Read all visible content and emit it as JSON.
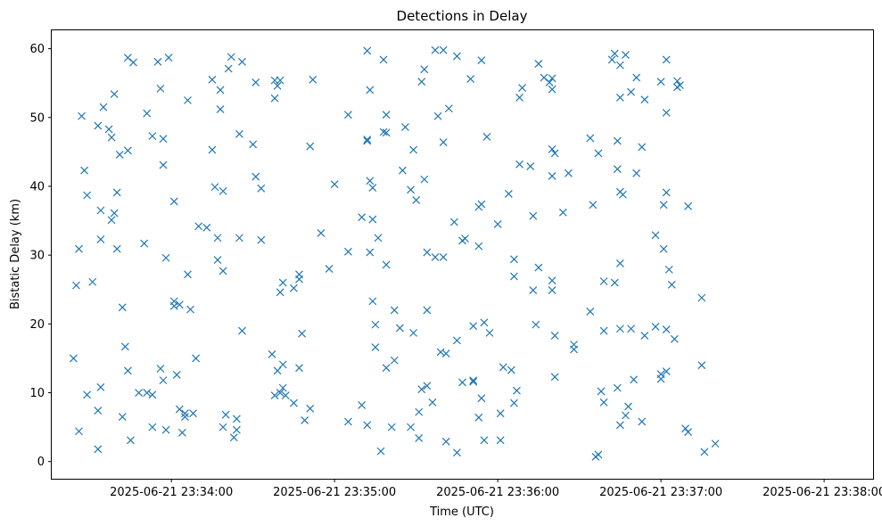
{
  "chart_data": {
    "type": "scatter",
    "title": "Detections in Delay",
    "xlabel": "Time (UTC)",
    "ylabel": "Bistatic Delay (km)",
    "x_ticks": [
      {
        "t": "2025-06-21 23:34:00",
        "label": "2025-06-21 23:34:00"
      },
      {
        "t": "2025-06-21 23:35:00",
        "label": "2025-06-21 23:35:00"
      },
      {
        "t": "2025-06-21 23:36:00",
        "label": "2025-06-21 23:36:00"
      },
      {
        "t": "2025-06-21 23:37:00",
        "label": "2025-06-21 23:37:00"
      },
      {
        "t": "2025-06-21 23:38:00",
        "label": "2025-06-21 23:38:00"
      }
    ],
    "xlim": [
      "2025-06-21 23:33:16",
      "2025-06-21 23:38:18"
    ],
    "y_ticks": [
      0,
      10,
      20,
      30,
      40,
      50,
      60
    ],
    "ylim": [
      -2.5,
      62.8
    ],
    "marker": "x",
    "color": "#1f77b4",
    "grid": false,
    "points": [
      [
        "2025-06-21 23:33:24",
        15.0
      ],
      [
        "2025-06-21 23:33:25",
        25.6
      ],
      [
        "2025-06-21 23:33:26",
        30.9
      ],
      [
        "2025-06-21 23:33:26",
        4.4
      ],
      [
        "2025-06-21 23:33:27",
        50.2
      ],
      [
        "2025-06-21 23:33:28",
        42.3
      ],
      [
        "2025-06-21 23:33:29",
        38.7
      ],
      [
        "2025-06-21 23:33:29",
        9.7
      ],
      [
        "2025-06-21 23:33:31",
        26.1
      ],
      [
        "2025-06-21 23:33:33",
        1.8
      ],
      [
        "2025-06-21 23:33:33",
        48.8
      ],
      [
        "2025-06-21 23:33:34",
        36.5
      ],
      [
        "2025-06-21 23:33:34",
        32.3
      ],
      [
        "2025-06-21 23:33:33",
        7.4
      ],
      [
        "2025-06-21 23:33:34",
        10.8
      ],
      [
        "2025-06-21 23:33:35",
        51.5
      ],
      [
        "2025-06-21 23:33:37",
        48.3
      ],
      [
        "2025-06-21 23:33:38",
        47.1
      ],
      [
        "2025-06-21 23:33:39",
        53.4
      ],
      [
        "2025-06-21 23:33:38",
        35.1
      ],
      [
        "2025-06-21 23:33:39",
        36.1
      ],
      [
        "2025-06-21 23:33:40",
        39.1
      ],
      [
        "2025-06-21 23:33:40",
        30.9
      ],
      [
        "2025-06-21 23:33:41",
        44.6
      ],
      [
        "2025-06-21 23:33:42",
        22.4
      ],
      [
        "2025-06-21 23:33:42",
        6.5
      ],
      [
        "2025-06-21 23:33:43",
        16.7
      ],
      [
        "2025-06-21 23:33:44",
        13.2
      ],
      [
        "2025-06-21 23:33:44",
        45.2
      ],
      [
        "2025-06-21 23:33:44",
        58.7
      ],
      [
        "2025-06-21 23:33:45",
        3.1
      ],
      [
        "2025-06-21 23:33:46",
        58.0
      ],
      [
        "2025-06-21 23:33:48",
        10.0
      ],
      [
        "2025-06-21 23:33:50",
        31.7
      ],
      [
        "2025-06-21 23:33:51",
        50.6
      ],
      [
        "2025-06-21 23:33:51",
        10.0
      ],
      [
        "2025-06-21 23:33:53",
        47.3
      ],
      [
        "2025-06-21 23:33:53",
        5.0
      ],
      [
        "2025-06-21 23:33:53",
        9.7
      ],
      [
        "2025-06-21 23:33:55",
        58.1
      ],
      [
        "2025-06-21 23:33:56",
        54.2
      ],
      [
        "2025-06-21 23:33:56",
        13.5
      ],
      [
        "2025-06-21 23:33:57",
        11.8
      ],
      [
        "2025-06-21 23:33:57",
        43.1
      ],
      [
        "2025-06-21 23:33:57",
        46.9
      ],
      [
        "2025-06-21 23:33:58",
        29.6
      ],
      [
        "2025-06-21 23:33:58",
        4.6
      ],
      [
        "2025-06-21 23:33:59",
        58.7
      ],
      [
        "2025-06-21 23:34:01",
        37.8
      ],
      [
        "2025-06-21 23:34:01",
        22.6
      ],
      [
        "2025-06-21 23:34:01",
        23.3
      ],
      [
        "2025-06-21 23:34:02",
        12.6
      ],
      [
        "2025-06-21 23:34:03",
        22.8
      ],
      [
        "2025-06-21 23:34:03",
        7.6
      ],
      [
        "2025-06-21 23:34:04",
        4.2
      ],
      [
        "2025-06-21 23:34:05",
        6.5
      ],
      [
        "2025-06-21 23:34:05",
        7.0
      ],
      [
        "2025-06-21 23:34:06",
        52.5
      ],
      [
        "2025-06-21 23:34:06",
        27.2
      ],
      [
        "2025-06-21 23:34:07",
        22.1
      ],
      [
        "2025-06-21 23:34:08",
        7.0
      ],
      [
        "2025-06-21 23:34:09",
        15.0
      ],
      [
        "2025-06-21 23:34:10",
        34.2
      ],
      [
        "2025-06-21 23:34:13",
        34.0
      ],
      [
        "2025-06-21 23:34:15",
        45.3
      ],
      [
        "2025-06-21 23:34:15",
        55.5
      ],
      [
        "2025-06-21 23:34:16",
        39.9
      ],
      [
        "2025-06-21 23:34:17",
        32.5
      ],
      [
        "2025-06-21 23:34:17",
        29.3
      ],
      [
        "2025-06-21 23:34:18",
        51.2
      ],
      [
        "2025-06-21 23:34:18",
        54.0
      ],
      [
        "2025-06-21 23:34:19",
        27.7
      ],
      [
        "2025-06-21 23:34:19",
        39.3
      ],
      [
        "2025-06-21 23:34:19",
        5.0
      ],
      [
        "2025-06-21 23:34:20",
        6.8
      ],
      [
        "2025-06-21 23:34:21",
        57.1
      ],
      [
        "2025-06-21 23:34:22",
        58.8
      ],
      [
        "2025-06-21 23:34:23",
        3.5
      ],
      [
        "2025-06-21 23:34:24",
        6.2
      ],
      [
        "2025-06-21 23:34:24",
        4.6
      ],
      [
        "2025-06-21 23:34:25",
        32.5
      ],
      [
        "2025-06-21 23:34:25",
        47.6
      ],
      [
        "2025-06-21 23:34:26",
        58.1
      ],
      [
        "2025-06-21 23:34:26",
        19.0
      ],
      [
        "2025-06-21 23:34:30",
        46.1
      ],
      [
        "2025-06-21 23:34:31",
        41.4
      ],
      [
        "2025-06-21 23:34:31",
        55.1
      ],
      [
        "2025-06-21 23:34:33",
        39.7
      ],
      [
        "2025-06-21 23:34:33",
        32.2
      ],
      [
        "2025-06-21 23:34:37",
        15.6
      ],
      [
        "2025-06-21 23:34:38",
        9.6
      ],
      [
        "2025-06-21 23:34:38",
        55.4
      ],
      [
        "2025-06-21 23:34:38",
        52.8
      ],
      [
        "2025-06-21 23:34:39",
        54.6
      ],
      [
        "2025-06-21 23:34:39",
        13.2
      ],
      [
        "2025-06-21 23:34:40",
        55.4
      ],
      [
        "2025-06-21 23:34:40",
        24.6
      ],
      [
        "2025-06-21 23:34:40",
        10.0
      ],
      [
        "2025-06-21 23:34:41",
        26.0
      ],
      [
        "2025-06-21 23:34:41",
        14.1
      ],
      [
        "2025-06-21 23:34:41",
        10.7
      ],
      [
        "2025-06-21 23:34:42",
        9.6
      ],
      [
        "2025-06-21 23:34:45",
        25.2
      ],
      [
        "2025-06-21 23:34:45",
        8.5
      ],
      [
        "2025-06-21 23:34:47",
        26.5
      ],
      [
        "2025-06-21 23:34:47",
        27.2
      ],
      [
        "2025-06-21 23:34:47",
        13.6
      ],
      [
        "2025-06-21 23:34:48",
        18.6
      ],
      [
        "2025-06-21 23:34:49",
        6.0
      ],
      [
        "2025-06-21 23:34:51",
        7.7
      ],
      [
        "2025-06-21 23:34:51",
        45.8
      ],
      [
        "2025-06-21 23:34:52",
        55.5
      ],
      [
        "2025-06-21 23:34:55",
        33.2
      ],
      [
        "2025-06-21 23:34:58",
        28.0
      ],
      [
        "2025-06-21 23:35:00",
        40.3
      ],
      [
        "2025-06-21 23:35:05",
        30.5
      ],
      [
        "2025-06-21 23:35:05",
        50.4
      ],
      [
        "2025-06-21 23:35:05",
        5.8
      ],
      [
        "2025-06-21 23:35:10",
        35.5
      ],
      [
        "2025-06-21 23:35:10",
        8.2
      ],
      [
        "2025-06-21 23:35:12",
        5.3
      ],
      [
        "2025-06-21 23:35:12",
        59.7
      ],
      [
        "2025-06-21 23:35:12",
        46.8
      ],
      [
        "2025-06-21 23:35:12",
        46.6
      ],
      [
        "2025-06-21 23:35:13",
        54.0
      ],
      [
        "2025-06-21 23:35:13",
        30.4
      ],
      [
        "2025-06-21 23:35:13",
        40.8
      ],
      [
        "2025-06-21 23:35:14",
        39.8
      ],
      [
        "2025-06-21 23:35:14",
        35.2
      ],
      [
        "2025-06-21 23:35:14",
        23.3
      ],
      [
        "2025-06-21 23:35:15",
        19.9
      ],
      [
        "2025-06-21 23:35:15",
        16.6
      ],
      [
        "2025-06-21 23:35:16",
        32.5
      ],
      [
        "2025-06-21 23:35:17",
        1.5
      ],
      [
        "2025-06-21 23:35:18",
        58.4
      ],
      [
        "2025-06-21 23:35:18",
        47.9
      ],
      [
        "2025-06-21 23:35:19",
        47.8
      ],
      [
        "2025-06-21 23:35:19",
        50.4
      ],
      [
        "2025-06-21 23:35:19",
        28.6
      ],
      [
        "2025-06-21 23:35:19",
        13.6
      ],
      [
        "2025-06-21 23:35:21",
        5.0
      ],
      [
        "2025-06-21 23:35:22",
        14.7
      ],
      [
        "2025-06-21 23:35:22",
        22.0
      ],
      [
        "2025-06-21 23:35:24",
        19.4
      ],
      [
        "2025-06-21 23:35:25",
        42.3
      ],
      [
        "2025-06-21 23:35:26",
        48.6
      ],
      [
        "2025-06-21 23:35:28",
        5.0
      ],
      [
        "2025-06-21 23:35:28",
        39.5
      ],
      [
        "2025-06-21 23:35:29",
        45.3
      ],
      [
        "2025-06-21 23:35:29",
        18.7
      ],
      [
        "2025-06-21 23:35:30",
        38.0
      ],
      [
        "2025-06-21 23:35:31",
        3.4
      ],
      [
        "2025-06-21 23:35:31",
        7.2
      ],
      [
        "2025-06-21 23:35:32",
        10.5
      ],
      [
        "2025-06-21 23:35:32",
        55.2
      ],
      [
        "2025-06-21 23:35:33",
        57.0
      ],
      [
        "2025-06-21 23:35:33",
        41.0
      ],
      [
        "2025-06-21 23:35:34",
        11.0
      ],
      [
        "2025-06-21 23:35:34",
        22.0
      ],
      [
        "2025-06-21 23:35:34",
        30.4
      ],
      [
        "2025-06-21 23:35:36",
        8.6
      ],
      [
        "2025-06-21 23:35:37",
        29.7
      ],
      [
        "2025-06-21 23:35:37",
        59.8
      ],
      [
        "2025-06-21 23:35:38",
        50.2
      ],
      [
        "2025-06-21 23:35:39",
        15.9
      ],
      [
        "2025-06-21 23:35:40",
        29.7
      ],
      [
        "2025-06-21 23:35:40",
        59.8
      ],
      [
        "2025-06-21 23:35:40",
        46.4
      ],
      [
        "2025-06-21 23:35:41",
        15.7
      ],
      [
        "2025-06-21 23:35:41",
        2.9
      ],
      [
        "2025-06-21 23:35:42",
        51.3
      ],
      [
        "2025-06-21 23:35:44",
        34.8
      ],
      [
        "2025-06-21 23:35:45",
        17.6
      ],
      [
        "2025-06-21 23:35:45",
        58.9
      ],
      [
        "2025-06-21 23:35:45",
        1.3
      ],
      [
        "2025-06-21 23:35:47",
        32.1
      ],
      [
        "2025-06-21 23:35:47",
        11.5
      ],
      [
        "2025-06-21 23:35:48",
        32.4
      ],
      [
        "2025-06-21 23:35:50",
        55.6
      ],
      [
        "2025-06-21 23:35:51",
        11.8
      ],
      [
        "2025-06-21 23:35:51",
        11.6
      ],
      [
        "2025-06-21 23:35:51",
        19.7
      ],
      [
        "2025-06-21 23:35:53",
        37.0
      ],
      [
        "2025-06-21 23:35:53",
        31.3
      ],
      [
        "2025-06-21 23:35:53",
        6.4
      ],
      [
        "2025-06-21 23:35:54",
        9.2
      ],
      [
        "2025-06-21 23:35:54",
        37.4
      ],
      [
        "2025-06-21 23:35:54",
        58.3
      ],
      [
        "2025-06-21 23:35:55",
        20.2
      ],
      [
        "2025-06-21 23:35:55",
        3.1
      ],
      [
        "2025-06-21 23:35:56",
        47.2
      ],
      [
        "2025-06-21 23:35:57",
        18.7
      ],
      [
        "2025-06-21 23:36:00",
        34.5
      ],
      [
        "2025-06-21 23:36:01",
        7.0
      ],
      [
        "2025-06-21 23:36:01",
        3.1
      ],
      [
        "2025-06-21 23:36:02",
        13.7
      ],
      [
        "2025-06-21 23:36:04",
        38.9
      ],
      [
        "2025-06-21 23:36:05",
        13.3
      ],
      [
        "2025-06-21 23:36:06",
        29.4
      ],
      [
        "2025-06-21 23:36:06",
        26.9
      ],
      [
        "2025-06-21 23:36:06",
        8.5
      ],
      [
        "2025-06-21 23:36:07",
        10.3
      ],
      [
        "2025-06-21 23:36:08",
        43.2
      ],
      [
        "2025-06-21 23:36:08",
        52.9
      ],
      [
        "2025-06-21 23:36:09",
        54.3
      ],
      [
        "2025-06-21 23:36:12",
        42.9
      ],
      [
        "2025-06-21 23:36:13",
        35.7
      ],
      [
        "2025-06-21 23:36:13",
        24.9
      ],
      [
        "2025-06-21 23:36:14",
        19.9
      ],
      [
        "2025-06-21 23:36:15",
        57.8
      ],
      [
        "2025-06-21 23:36:15",
        28.2
      ],
      [
        "2025-06-21 23:36:17",
        55.8
      ],
      [
        "2025-06-21 23:36:19",
        55.1
      ],
      [
        "2025-06-21 23:36:20",
        55.7
      ],
      [
        "2025-06-21 23:36:20",
        54.1
      ],
      [
        "2025-06-21 23:36:20",
        41.5
      ],
      [
        "2025-06-21 23:36:20",
        45.4
      ],
      [
        "2025-06-21 23:36:20",
        26.3
      ],
      [
        "2025-06-21 23:36:20",
        24.9
      ],
      [
        "2025-06-21 23:36:21",
        44.8
      ],
      [
        "2025-06-21 23:36:21",
        18.3
      ],
      [
        "2025-06-21 23:36:21",
        12.3
      ],
      [
        "2025-06-21 23:36:24",
        36.2
      ],
      [
        "2025-06-21 23:36:26",
        41.9
      ],
      [
        "2025-06-21 23:36:28",
        17.0
      ],
      [
        "2025-06-21 23:36:28",
        16.3
      ],
      [
        "2025-06-21 23:36:34",
        21.8
      ],
      [
        "2025-06-21 23:36:34",
        47.0
      ],
      [
        "2025-06-21 23:36:35",
        37.3
      ],
      [
        "2025-06-21 23:36:36",
        0.7
      ],
      [
        "2025-06-21 23:36:37",
        44.8
      ],
      [
        "2025-06-21 23:36:37",
        1.0
      ],
      [
        "2025-06-21 23:36:38",
        10.2
      ],
      [
        "2025-06-21 23:36:39",
        19.0
      ],
      [
        "2025-06-21 23:36:39",
        26.2
      ],
      [
        "2025-06-21 23:36:39",
        8.6
      ],
      [
        "2025-06-21 23:36:42",
        58.4
      ],
      [
        "2025-06-21 23:36:43",
        59.3
      ],
      [
        "2025-06-21 23:36:43",
        26.0
      ],
      [
        "2025-06-21 23:36:44",
        42.5
      ],
      [
        "2025-06-21 23:36:44",
        10.7
      ],
      [
        "2025-06-21 23:36:44",
        46.6
      ],
      [
        "2025-06-21 23:36:45",
        57.6
      ],
      [
        "2025-06-21 23:36:45",
        52.9
      ],
      [
        "2025-06-21 23:36:45",
        28.8
      ],
      [
        "2025-06-21 23:36:45",
        39.2
      ],
      [
        "2025-06-21 23:36:45",
        19.3
      ],
      [
        "2025-06-21 23:36:45",
        5.3
      ],
      [
        "2025-06-21 23:36:46",
        38.8
      ],
      [
        "2025-06-21 23:36:47",
        59.1
      ],
      [
        "2025-06-21 23:36:47",
        6.7
      ],
      [
        "2025-06-21 23:36:48",
        8.0
      ],
      [
        "2025-06-21 23:36:49",
        53.7
      ],
      [
        "2025-06-21 23:36:49",
        19.3
      ],
      [
        "2025-06-21 23:36:50",
        11.9
      ],
      [
        "2025-06-21 23:36:51",
        55.8
      ],
      [
        "2025-06-21 23:36:51",
        41.9
      ],
      [
        "2025-06-21 23:36:53",
        5.8
      ],
      [
        "2025-06-21 23:36:53",
        45.7
      ],
      [
        "2025-06-21 23:36:54",
        52.6
      ],
      [
        "2025-06-21 23:36:54",
        18.3
      ],
      [
        "2025-06-21 23:36:58",
        32.9
      ],
      [
        "2025-06-21 23:36:58",
        19.6
      ],
      [
        "2025-06-21 23:37:00",
        55.2
      ],
      [
        "2025-06-21 23:37:00",
        12.0
      ],
      [
        "2025-06-21 23:37:00",
        12.7
      ],
      [
        "2025-06-21 23:37:01",
        37.3
      ],
      [
        "2025-06-21 23:37:01",
        30.9
      ],
      [
        "2025-06-21 23:37:02",
        19.2
      ],
      [
        "2025-06-21 23:37:02",
        13.1
      ],
      [
        "2025-06-21 23:37:02",
        58.4
      ],
      [
        "2025-06-21 23:37:02",
        50.7
      ],
      [
        "2025-06-21 23:37:02",
        39.1
      ],
      [
        "2025-06-21 23:37:03",
        27.9
      ],
      [
        "2025-06-21 23:37:04",
        25.7
      ],
      [
        "2025-06-21 23:37:05",
        17.8
      ],
      [
        "2025-06-21 23:37:06",
        55.3
      ],
      [
        "2025-06-21 23:37:06",
        54.4
      ],
      [
        "2025-06-21 23:37:07",
        54.7
      ],
      [
        "2025-06-21 23:37:09",
        4.8
      ],
      [
        "2025-06-21 23:37:10",
        4.3
      ],
      [
        "2025-06-21 23:37:10",
        37.1
      ],
      [
        "2025-06-21 23:37:15",
        23.8
      ],
      [
        "2025-06-21 23:37:15",
        14.0
      ],
      [
        "2025-06-21 23:37:16",
        1.4
      ],
      [
        "2025-06-21 23:37:20",
        2.6
      ]
    ]
  }
}
